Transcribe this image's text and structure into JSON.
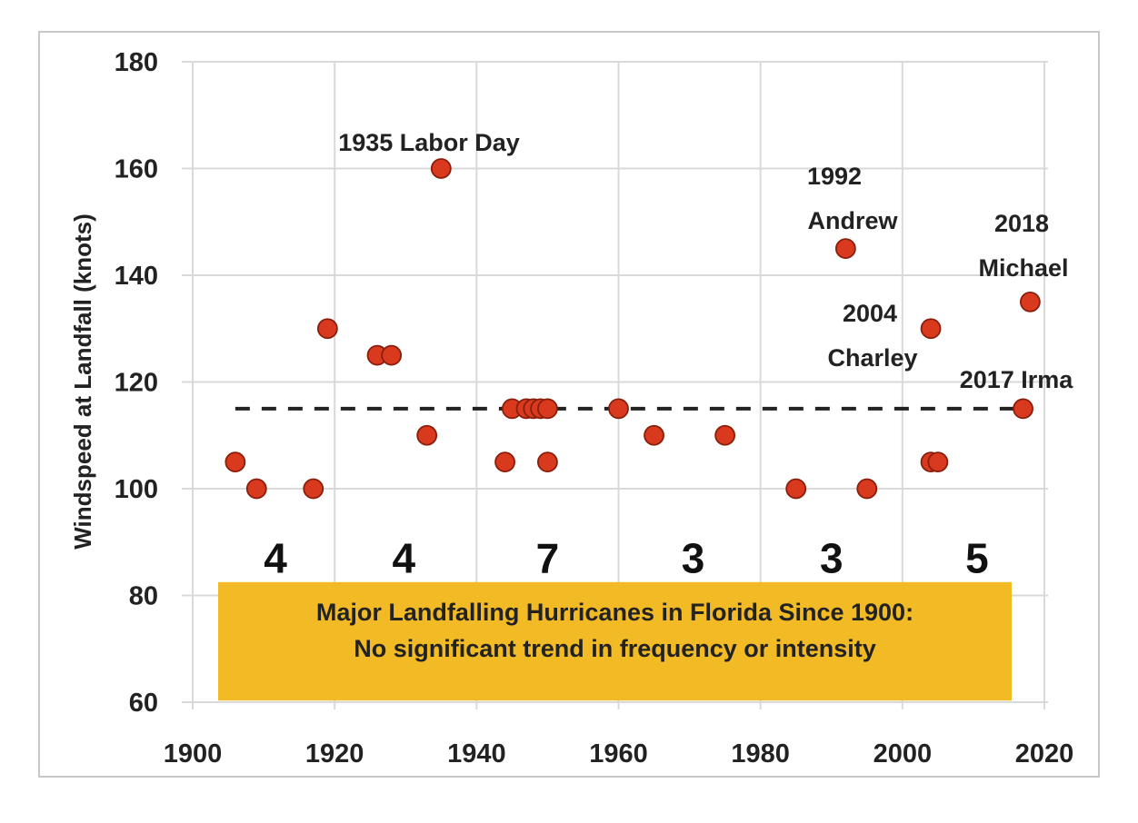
{
  "chart_data": {
    "type": "scatter",
    "title": "",
    "xlabel": "",
    "ylabel": "Windspeed at Landfall (knots)",
    "xlim": [
      1900,
      2020
    ],
    "ylim": [
      60,
      180
    ],
    "xticks": [
      1900,
      1920,
      1940,
      1960,
      1980,
      2000,
      2020
    ],
    "yticks": [
      60,
      80,
      100,
      120,
      140,
      160,
      180
    ],
    "grid": true,
    "marker_color": "#d93a1e",
    "marker_edge_color": "#8a1e0c",
    "series": [
      {
        "name": "Major Landfalling Hurricanes",
        "points": [
          {
            "x": 1906,
            "y": 105
          },
          {
            "x": 1909,
            "y": 100
          },
          {
            "x": 1917,
            "y": 100
          },
          {
            "x": 1919,
            "y": 130
          },
          {
            "x": 1926,
            "y": 125
          },
          {
            "x": 1928,
            "y": 125
          },
          {
            "x": 1933,
            "y": 110
          },
          {
            "x": 1935,
            "y": 160
          },
          {
            "x": 1944,
            "y": 105
          },
          {
            "x": 1945,
            "y": 115
          },
          {
            "x": 1947,
            "y": 115
          },
          {
            "x": 1948,
            "y": 115
          },
          {
            "x": 1949,
            "y": 115
          },
          {
            "x": 1950,
            "y": 115
          },
          {
            "x": 1950,
            "y": 105
          },
          {
            "x": 1960,
            "y": 115
          },
          {
            "x": 1965,
            "y": 110
          },
          {
            "x": 1975,
            "y": 110
          },
          {
            "x": 1985,
            "y": 100
          },
          {
            "x": 1992,
            "y": 145
          },
          {
            "x": 1995,
            "y": 100
          },
          {
            "x": 2004,
            "y": 130
          },
          {
            "x": 2004,
            "y": 105
          },
          {
            "x": 2005,
            "y": 105
          },
          {
            "x": 2017,
            "y": 115
          },
          {
            "x": 2018,
            "y": 135
          }
        ]
      }
    ],
    "mean_line": {
      "value": 115,
      "x_start": 1906,
      "x_end": 2018,
      "style": "dashed",
      "color": "#222222"
    },
    "annotations": [
      {
        "lines": [
          "1935 Labor Day"
        ],
        "x": 1935,
        "y": 160
      },
      {
        "lines": [
          "1992",
          "Andrew"
        ],
        "x": 1992,
        "y": 145
      },
      {
        "lines": [
          "2018",
          "Michael"
        ],
        "x": 2018,
        "y": 135
      },
      {
        "lines": [
          "2004",
          "Charley"
        ],
        "x": 2004,
        "y": 130
      },
      {
        "lines": [
          "2017 Irma"
        ],
        "x": 2017,
        "y": 115
      }
    ],
    "decade_counts": [
      {
        "label": "4",
        "period": "1900-1920"
      },
      {
        "label": "4",
        "period": "1920-1940"
      },
      {
        "label": "7",
        "period": "1940-1960"
      },
      {
        "label": "3",
        "period": "1960-1980"
      },
      {
        "label": "3",
        "period": "1980-2000"
      },
      {
        "label": "5",
        "period": "2000-2020"
      }
    ],
    "text_box": {
      "lines": [
        "Major Landfalling Hurricanes in Florida Since 1900:",
        "No significant trend in frequency or intensity"
      ],
      "background": "#f2bb25"
    }
  }
}
